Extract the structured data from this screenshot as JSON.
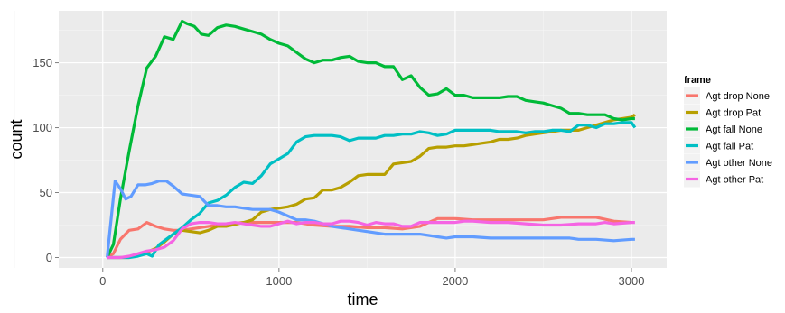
{
  "chart_data": {
    "type": "line",
    "xlabel": "time",
    "ylabel": "count",
    "xlim": [
      -250,
      3200
    ],
    "ylim": [
      -8,
      190
    ],
    "x_ticks": [
      0,
      1000,
      2000,
      3000
    ],
    "y_ticks": [
      0,
      50,
      100,
      150
    ],
    "x_tick_labels": [
      "0",
      "1000",
      "2000",
      "3000"
    ],
    "y_tick_labels": [
      "0",
      "50",
      "100",
      "150"
    ],
    "grid": true,
    "background": "#ebebeb",
    "legend": {
      "title": "frame",
      "position": "right"
    },
    "series": [
      {
        "name": "Agt drop None",
        "color": "#f8766d",
        "x": [
          25,
          60,
          100,
          150,
          200,
          250,
          300,
          350,
          400,
          450,
          500,
          600,
          700,
          800,
          900,
          1000,
          1100,
          1200,
          1300,
          1400,
          1500,
          1600,
          1700,
          1800,
          1900,
          2000,
          2100,
          2200,
          2300,
          2400,
          2500,
          2600,
          2700,
          2800,
          2900,
          3000
        ],
        "y": [
          0,
          3,
          14,
          21,
          22,
          27,
          24,
          22,
          21,
          21,
          22,
          24,
          26,
          27,
          27,
          27,
          27,
          25,
          24,
          24,
          23,
          23,
          22,
          24,
          30,
          30,
          29,
          29,
          29,
          29,
          29,
          31,
          31,
          31,
          28,
          27
        ]
      },
      {
        "name": "Agt drop Pat",
        "color": "#b79f00",
        "x": [
          25,
          60,
          100,
          150,
          200,
          250,
          300,
          350,
          400,
          450,
          500,
          550,
          600,
          650,
          700,
          800,
          850,
          900,
          950,
          1000,
          1050,
          1100,
          1150,
          1200,
          1250,
          1300,
          1350,
          1400,
          1450,
          1500,
          1550,
          1600,
          1650,
          1700,
          1750,
          1800,
          1850,
          1900,
          1950,
          2000,
          2050,
          2100,
          2150,
          2200,
          2250,
          2300,
          2350,
          2400,
          2450,
          2500,
          2550,
          2600,
          2650,
          2700,
          2750,
          2800,
          2850,
          2900,
          2950,
          3000,
          3020
        ],
        "y": [
          0,
          0,
          0,
          0,
          2,
          4,
          7,
          12,
          18,
          21,
          20,
          19,
          21,
          24,
          24,
          27,
          29,
          35,
          37,
          38,
          39,
          41,
          45,
          46,
          52,
          52,
          54,
          58,
          63,
          64,
          64,
          64,
          72,
          73,
          74,
          78,
          84,
          85,
          85,
          86,
          86,
          87,
          88,
          89,
          91,
          91,
          92,
          94,
          95,
          96,
          97,
          98,
          98,
          98,
          100,
          102,
          104,
          106,
          107,
          108,
          110
        ]
      },
      {
        "name": "Agt fall None",
        "color": "#00ba38",
        "x": [
          25,
          60,
          100,
          150,
          200,
          250,
          300,
          350,
          400,
          450,
          480,
          520,
          560,
          600,
          650,
          700,
          750,
          800,
          850,
          900,
          950,
          1000,
          1050,
          1100,
          1150,
          1200,
          1250,
          1300,
          1350,
          1400,
          1450,
          1500,
          1550,
          1600,
          1650,
          1700,
          1750,
          1800,
          1850,
          1900,
          1950,
          2000,
          2050,
          2100,
          2150,
          2200,
          2250,
          2300,
          2350,
          2400,
          2450,
          2500,
          2550,
          2600,
          2650,
          2700,
          2750,
          2800,
          2850,
          2900,
          2950,
          3000,
          3020
        ],
        "y": [
          0,
          10,
          45,
          82,
          117,
          146,
          155,
          170,
          168,
          182,
          180,
          178,
          172,
          171,
          177,
          179,
          178,
          176,
          174,
          172,
          168,
          165,
          163,
          158,
          153,
          150,
          152,
          152,
          154,
          155,
          151,
          150,
          150,
          147,
          147,
          137,
          140,
          131,
          125,
          126,
          130,
          125,
          125,
          123,
          123,
          123,
          123,
          124,
          124,
          121,
          120,
          119,
          117,
          115,
          111,
          111,
          110,
          110,
          110,
          107,
          106,
          107,
          107
        ]
      },
      {
        "name": "Agt fall Pat",
        "color": "#00bfc4",
        "x": [
          25,
          60,
          100,
          150,
          200,
          250,
          280,
          320,
          360,
          400,
          450,
          500,
          550,
          600,
          650,
          700,
          750,
          800,
          850,
          900,
          950,
          1000,
          1050,
          1100,
          1150,
          1200,
          1250,
          1300,
          1350,
          1400,
          1450,
          1500,
          1550,
          1600,
          1650,
          1700,
          1750,
          1800,
          1850,
          1900,
          1950,
          2000,
          2050,
          2100,
          2150,
          2200,
          2250,
          2300,
          2350,
          2400,
          2450,
          2500,
          2550,
          2600,
          2650,
          2700,
          2750,
          2800,
          2850,
          2900,
          2950,
          3000,
          3020
        ],
        "y": [
          0,
          0,
          0,
          0,
          1,
          3,
          1,
          10,
          14,
          18,
          23,
          29,
          34,
          42,
          44,
          48,
          54,
          58,
          57,
          63,
          72,
          76,
          80,
          89,
          93,
          94,
          94,
          94,
          93,
          90,
          92,
          92,
          92,
          94,
          94,
          95,
          95,
          97,
          96,
          94,
          95,
          98,
          98,
          98,
          98,
          98,
          97,
          97,
          97,
          96,
          97,
          97,
          98,
          98,
          97,
          102,
          102,
          100,
          103,
          103,
          104,
          104,
          100
        ]
      },
      {
        "name": "Agt other None",
        "color": "#619cff",
        "x": [
          25,
          70,
          100,
          130,
          160,
          200,
          240,
          280,
          320,
          360,
          400,
          450,
          500,
          550,
          600,
          650,
          700,
          750,
          800,
          850,
          900,
          950,
          1000,
          1050,
          1100,
          1150,
          1200,
          1300,
          1400,
          1500,
          1600,
          1700,
          1800,
          1850,
          1900,
          1950,
          2000,
          2100,
          2200,
          2300,
          2400,
          2500,
          2600,
          2650,
          2700,
          2800,
          2900,
          3000,
          3020
        ],
        "y": [
          0,
          59,
          53,
          45,
          47,
          56,
          56,
          57,
          59,
          59,
          55,
          49,
          48,
          47,
          40,
          40,
          39,
          39,
          38,
          37,
          37,
          37,
          35,
          32,
          29,
          29,
          28,
          24,
          22,
          20,
          18,
          18,
          18,
          17,
          16,
          15,
          16,
          16,
          15,
          15,
          15,
          15,
          15,
          15,
          14,
          14,
          13,
          14,
          14
        ]
      },
      {
        "name": "Agt other Pat",
        "color": "#f564e3",
        "x": [
          25,
          60,
          100,
          150,
          200,
          250,
          300,
          350,
          400,
          450,
          500,
          550,
          600,
          650,
          700,
          750,
          800,
          850,
          900,
          950,
          1000,
          1050,
          1100,
          1150,
          1200,
          1250,
          1300,
          1350,
          1400,
          1450,
          1500,
          1550,
          1600,
          1650,
          1700,
          1750,
          1800,
          1850,
          1900,
          1950,
          2000,
          2050,
          2100,
          2200,
          2300,
          2400,
          2500,
          2600,
          2700,
          2800,
          2850,
          2900,
          3000,
          3020
        ],
        "y": [
          0,
          0,
          0,
          1,
          3,
          5,
          6,
          8,
          13,
          22,
          26,
          27,
          27,
          26,
          26,
          27,
          26,
          25,
          24,
          24,
          26,
          28,
          26,
          27,
          27,
          26,
          26,
          28,
          28,
          27,
          25,
          27,
          26,
          26,
          24,
          24,
          27,
          27,
          27,
          27,
          27,
          28,
          28,
          27,
          27,
          26,
          25,
          25,
          26,
          26,
          27,
          26,
          27,
          27
        ]
      }
    ]
  }
}
